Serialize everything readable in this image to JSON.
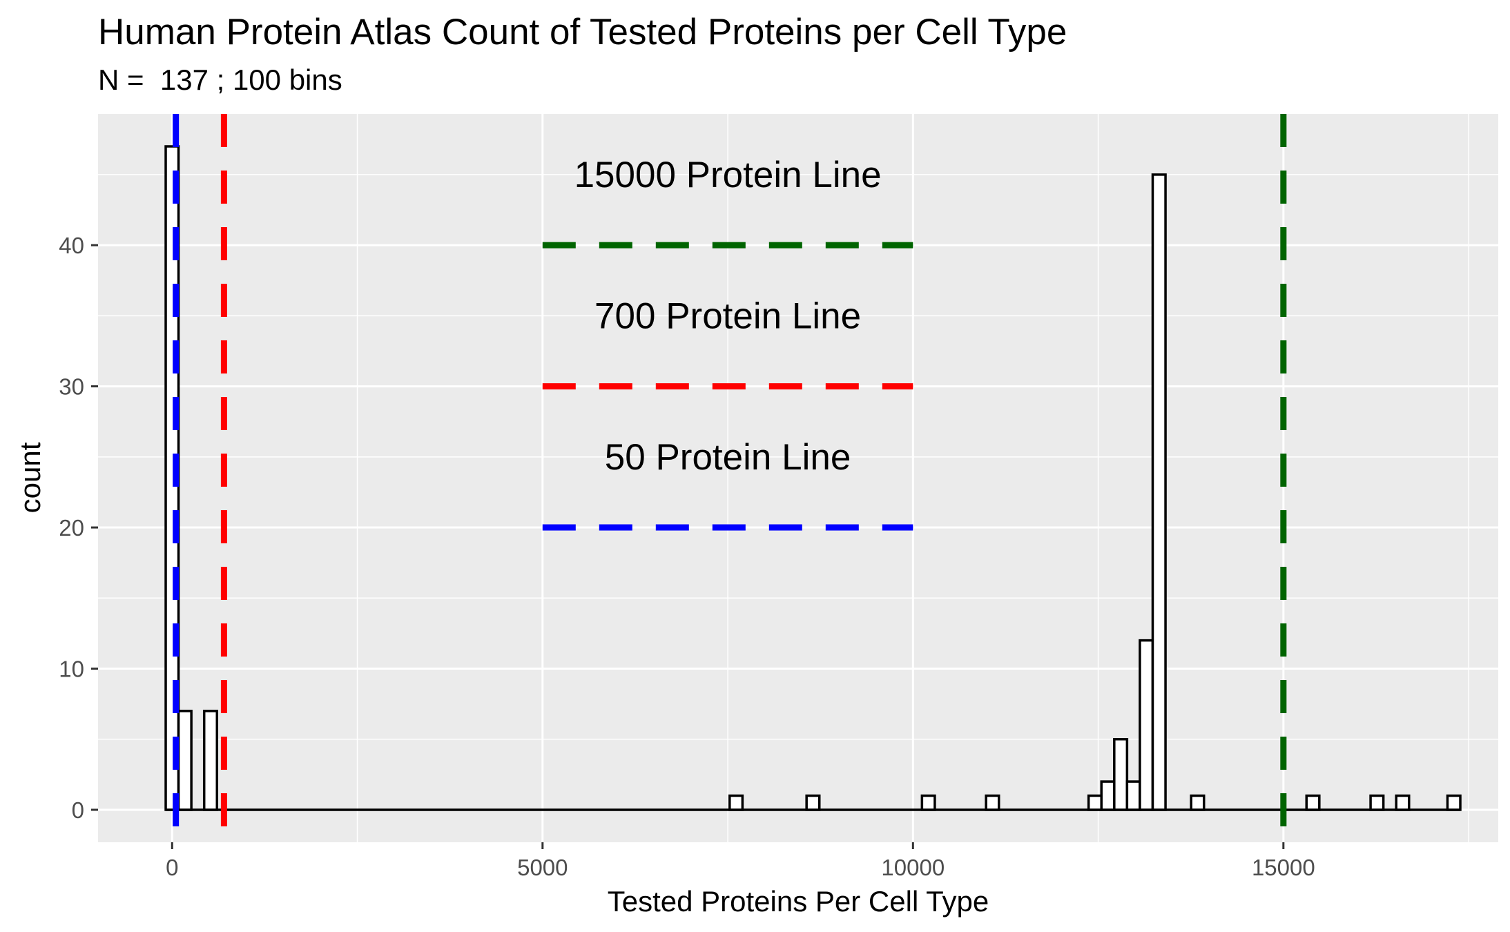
{
  "chart_data": {
    "type": "bar",
    "title": "Human Protein Atlas Count of Tested Proteins per Cell Type",
    "subtitle": "N =  137 ; 100 bins",
    "xlabel": "Tested Proteins Per Cell Type",
    "ylabel": "count",
    "xlim": [
      -1000,
      17900
    ],
    "ylim": [
      -2.3,
      49.3
    ],
    "xticks": [
      0,
      5000,
      10000,
      15000
    ],
    "xtick_labels": [
      "0",
      "5000",
      "10000",
      "15000"
    ],
    "yticks": [
      0,
      10,
      20,
      30,
      40
    ],
    "ytick_labels": [
      "0",
      "10",
      "20",
      "30",
      "40"
    ],
    "grid": true,
    "bin_width": 173,
    "bins": [
      {
        "x": 0,
        "count": 47
      },
      {
        "x": 173,
        "count": 7
      },
      {
        "x": 519,
        "count": 7
      },
      {
        "x": 7612,
        "count": 1
      },
      {
        "x": 8650,
        "count": 1
      },
      {
        "x": 10208,
        "count": 1
      },
      {
        "x": 11073,
        "count": 1
      },
      {
        "x": 12457,
        "count": 1
      },
      {
        "x": 12630,
        "count": 2
      },
      {
        "x": 12803,
        "count": 5
      },
      {
        "x": 12976,
        "count": 2
      },
      {
        "x": 13149,
        "count": 12
      },
      {
        "x": 13322,
        "count": 45
      },
      {
        "x": 13841,
        "count": 1
      },
      {
        "x": 15398,
        "count": 1
      },
      {
        "x": 16263,
        "count": 1
      },
      {
        "x": 16609,
        "count": 1
      },
      {
        "x": 17301,
        "count": 1
      }
    ],
    "hist_range": [
      -87,
      17388
    ],
    "vlines": [
      {
        "x": 15000,
        "color": "#006400",
        "label": "15000 Protein Line"
      },
      {
        "x": 700,
        "color": "#FF0000",
        "label": "700 Protein Line"
      },
      {
        "x": 50,
        "color": "#0000FF",
        "label": "50 Protein Line"
      }
    ],
    "annotations": [
      {
        "text": "15000 Protein Line",
        "x": 7500,
        "y": 45,
        "line_y": 40,
        "line_x": [
          5000,
          10000
        ],
        "color": "#006400"
      },
      {
        "text": "700 Protein Line",
        "x": 7500,
        "y": 35,
        "line_y": 30,
        "line_x": [
          5000,
          10000
        ],
        "color": "#FF0000"
      },
      {
        "text": "50 Protein Line",
        "x": 7500,
        "y": 25,
        "line_y": 20,
        "line_x": [
          5000,
          10000
        ],
        "color": "#0000FF"
      }
    ],
    "colors": {
      "panel_bg": "#EBEBEB",
      "grid": "#FFFFFF",
      "bar_fill": "#FFFFFF",
      "bar_stroke": "#000000",
      "tick_text": "#4D4D4D"
    }
  }
}
